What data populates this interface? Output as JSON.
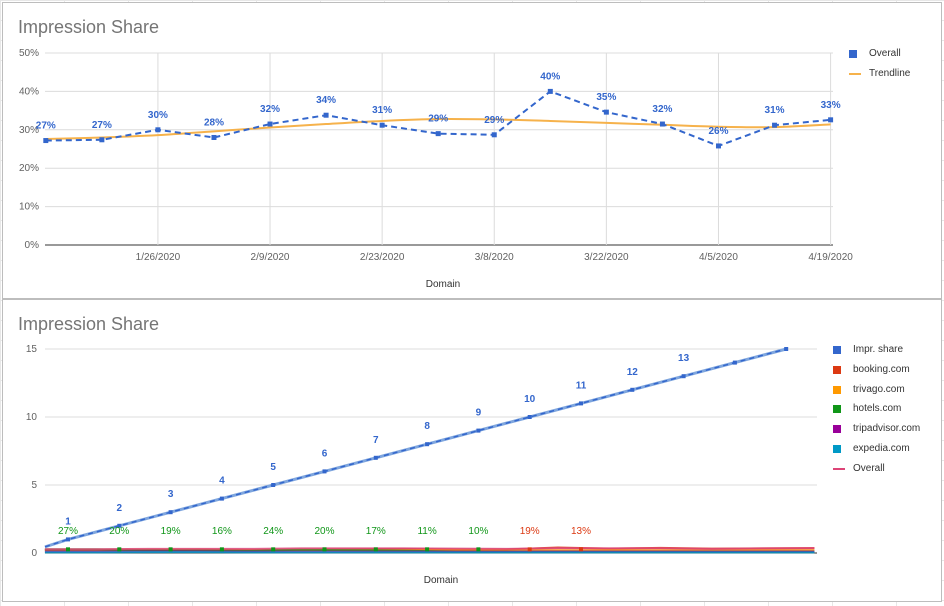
{
  "colors": {
    "overall_blue": "#3366cc",
    "trend_orange": "#f6b24b",
    "booking": "#dc3912",
    "trivago": "#ff9900",
    "hotels": "#109618",
    "tripadvisor": "#990099",
    "expedia": "#0099c6",
    "overall_pink": "#dd4477",
    "impr_line": "#7fa6de"
  },
  "chart_data": [
    {
      "type": "line",
      "title": "Impression Share",
      "xlabel": "Domain",
      "ylabel": "",
      "ylim": [
        0,
        50
      ],
      "y_ticks": [
        "0%",
        "10%",
        "20%",
        "30%",
        "40%",
        "50%"
      ],
      "x_ticks": [
        "1/26/2020",
        "2/9/2020",
        "2/23/2020",
        "3/8/2020",
        "3/22/2020",
        "4/5/2020",
        "4/19/2020"
      ],
      "x": [
        "1/12/2020",
        "1/19/2020",
        "1/26/2020",
        "2/2/2020",
        "2/9/2020",
        "2/16/2020",
        "2/23/2020",
        "3/1/2020",
        "3/8/2020",
        "3/15/2020",
        "3/22/2020",
        "3/29/2020",
        "4/5/2020",
        "4/12/2020",
        "4/19/2020"
      ],
      "grid": true,
      "legend_position": "right",
      "series": [
        {
          "name": "Overall",
          "style": "dashed-markers",
          "values": [
            27.2,
            27.4,
            30.0,
            28.0,
            31.5,
            33.8,
            31.2,
            29.0,
            28.7,
            40.0,
            34.6,
            31.5,
            25.8,
            31.2,
            32.6
          ],
          "labels": [
            "27%",
            "27%",
            "30%",
            "28%",
            "32%",
            "34%",
            "31%",
            "29%",
            "29%",
            "40%",
            "35%",
            "32%",
            "26%",
            "31%",
            "33%"
          ]
        },
        {
          "name": "Trendline",
          "style": "smooth",
          "values": [
            27.6,
            28.0,
            28.6,
            29.6,
            30.6,
            31.5,
            32.3,
            32.8,
            32.7,
            32.3,
            31.8,
            31.3,
            30.8,
            30.7,
            31.4
          ]
        }
      ]
    },
    {
      "type": "line",
      "title": "Impression Share",
      "xlabel": "Domain",
      "ylabel": "",
      "ylim": [
        0,
        15
      ],
      "y_ticks": [
        "0",
        "5",
        "10",
        "15"
      ],
      "grid": true,
      "legend_position": "right",
      "x": [
        0,
        1,
        2,
        3,
        4,
        5,
        6,
        7,
        8,
        9,
        10,
        11,
        12,
        13,
        14,
        15
      ],
      "impr_labels": [
        "1",
        "2",
        "3",
        "4",
        "5",
        "6",
        "7",
        "8",
        "9",
        "10",
        "11",
        "12",
        "13"
      ],
      "bottom_labels": [
        {
          "text": "27%",
          "series": "hotels.com"
        },
        {
          "text": "20%",
          "series": "hotels.com"
        },
        {
          "text": "19%",
          "series": "hotels.com"
        },
        {
          "text": "16%",
          "series": "hotels.com"
        },
        {
          "text": "24%",
          "series": "hotels.com"
        },
        {
          "text": "20%",
          "series": "hotels.com"
        },
        {
          "text": "17%",
          "series": "hotels.com"
        },
        {
          "text": "11%",
          "series": "hotels.com"
        },
        {
          "text": "10%",
          "series": "hotels.com"
        },
        {
          "text": "19%",
          "series": "booking.com"
        },
        {
          "text": "13%",
          "series": "booking.com"
        }
      ],
      "series": [
        {
          "name": "Impr. share",
          "values": [
            0.45,
            1,
            2,
            3,
            4,
            5,
            6,
            7,
            8,
            9,
            10,
            11,
            12,
            13,
            14,
            15
          ]
        },
        {
          "name": "booking.com",
          "values": [
            0.22,
            0.22,
            0.22,
            0.24,
            0.22,
            0.26,
            0.28,
            0.3,
            0.26,
            0.26,
            0.4,
            0.32,
            0.38,
            0.32,
            0.34,
            0.36
          ]
        },
        {
          "name": "trivago.com",
          "values": [
            0.24,
            0.24,
            0.24,
            0.24,
            0.2,
            0.22,
            0.22,
            0.22,
            0.22,
            0.22,
            0.2,
            0.2,
            0.2,
            0.2,
            0.2,
            0.2
          ]
        },
        {
          "name": "hotels.com",
          "values": [
            0.27,
            0.27,
            0.2,
            0.19,
            0.16,
            0.24,
            0.2,
            0.17,
            0.11,
            0.1,
            0.1,
            0.1,
            0.1,
            0.1,
            0.1,
            0.1
          ]
        },
        {
          "name": "tripadvisor.com",
          "values": [
            0.1,
            0.1,
            0.12,
            0.12,
            0.1,
            0.1,
            0.1,
            0.1,
            0.1,
            0.1,
            0.1,
            0.1,
            0.1,
            0.1,
            0.1,
            0.1
          ]
        },
        {
          "name": "expedia.com",
          "values": [
            0.05,
            0.05,
            0.06,
            0.06,
            0.05,
            0.05,
            0.05,
            0.05,
            0.05,
            0.05,
            0.05,
            0.05,
            0.05,
            0.05,
            0.05,
            0.05
          ]
        },
        {
          "name": "Overall",
          "values": [
            0.28,
            0.28,
            0.3,
            0.3,
            0.3,
            0.34,
            0.34,
            0.34,
            0.32,
            0.3,
            0.36,
            0.34,
            0.35,
            0.3,
            0.34,
            0.36
          ]
        }
      ]
    }
  ]
}
